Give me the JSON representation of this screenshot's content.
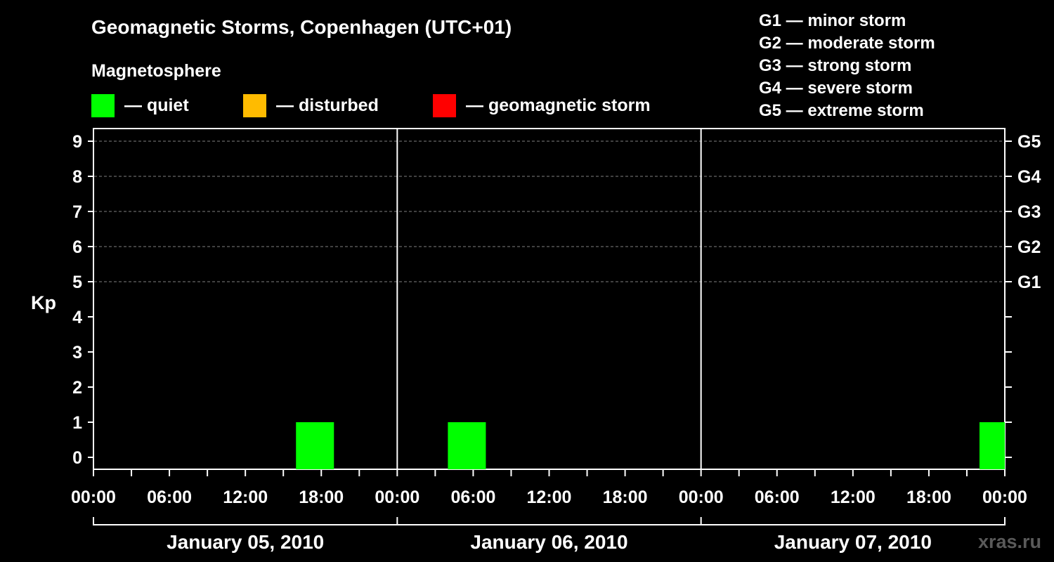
{
  "chart_data": {
    "type": "bar",
    "title": "Geomagnetic Storms, Copenhagen (UTC+01)",
    "legend_heading": "Magnetosphere",
    "legend": [
      {
        "label": "— quiet",
        "color": "#00ff00"
      },
      {
        "label": "— disturbed",
        "color": "#ffbb00"
      },
      {
        "label": "— geomagnetic storm",
        "color": "#ff0000"
      }
    ],
    "g_legend": [
      "G1 — minor storm",
      "G2 — moderate storm",
      "G3 — strong storm",
      "G4 — severe storm",
      "G5 — extreme storm"
    ],
    "ylabel": "Kp",
    "ylim": [
      0,
      9
    ],
    "y_ticks": [
      "0",
      "1",
      "2",
      "3",
      "4",
      "5",
      "6",
      "7",
      "8",
      "9"
    ],
    "g_levels": [
      {
        "label": "G1",
        "kp": 5
      },
      {
        "label": "G2",
        "kp": 6
      },
      {
        "label": "G3",
        "kp": 7
      },
      {
        "label": "G4",
        "kp": 8
      },
      {
        "label": "G5",
        "kp": 9
      }
    ],
    "x_ticks": [
      "00:00",
      "06:00",
      "12:00",
      "18:00",
      "00:00",
      "06:00",
      "12:00",
      "18:00",
      "00:00",
      "06:00",
      "12:00",
      "18:00",
      "00:00"
    ],
    "days": [
      "January 05, 2010",
      "January 06, 2010",
      "January 07, 2010"
    ],
    "bars": [
      {
        "day": "January 05, 2010",
        "start": "16:00",
        "end": "19:00",
        "kp": 1,
        "status": "quiet"
      },
      {
        "day": "January 06, 2010",
        "start": "04:00",
        "end": "07:00",
        "kp": 1,
        "status": "quiet"
      },
      {
        "day": "January 07, 2010",
        "start": "22:00",
        "end": "24:00",
        "kp": 1,
        "status": "quiet"
      }
    ],
    "grid": true,
    "status_colors": {
      "quiet": "#00ff00",
      "disturbed": "#ffbb00",
      "storm": "#ff0000"
    }
  },
  "watermark": "xras.ru"
}
